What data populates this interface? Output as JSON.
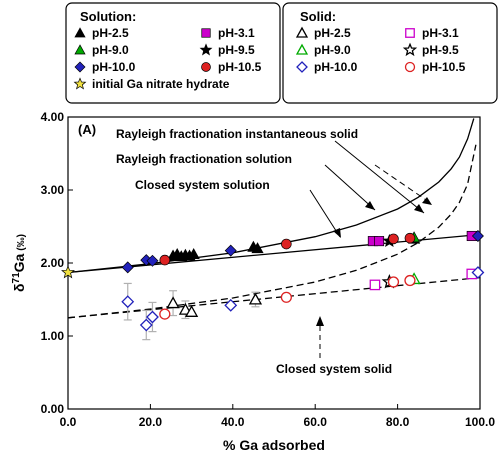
{
  "chart_data": {
    "type": "scatter",
    "panel_label": "(A)",
    "xlabel": "% Ga adsorbed",
    "ylabel_main": "δ",
    "ylabel_sup": "71",
    "ylabel_rest": "Ga",
    "ylabel_unit": "(‰)",
    "xlim": [
      0,
      100
    ],
    "ylim": [
      0,
      4
    ],
    "xticks": [
      "0.0",
      "20.0",
      "40.0",
      "60.0",
      "80.0",
      "100.0"
    ],
    "yticks": [
      "0.00",
      "1.00",
      "2.00",
      "3.00",
      "4.00"
    ],
    "legend_solution": {
      "title": "Solution:",
      "entries": [
        "pH-2.5",
        "pH-3.1",
        "pH-9.0",
        "pH-9.5",
        "pH-10.0",
        "pH-10.5",
        "initial Ga nitrate hydrate"
      ]
    },
    "legend_solid": {
      "title": "Solid:",
      "entries": [
        "pH-2.5",
        "pH-3.1",
        "pH-9.0",
        "pH-9.5",
        "pH-10.0",
        "pH-10.5"
      ]
    },
    "annotations": [
      "Rayleigh fractionation instantaneous solid",
      "Rayleigh fractionation solution",
      "Closed system solution",
      "Closed system solid"
    ],
    "series": [
      {
        "name": "pH-2.5",
        "phase": "Solution",
        "marker": "triangle",
        "filled": true,
        "color": "#000000",
        "points": [
          [
            25.5,
            2.1
          ],
          [
            26.5,
            2.12
          ],
          [
            27.5,
            2.09
          ],
          [
            28.5,
            2.11
          ],
          [
            29.5,
            2.1
          ],
          [
            30.5,
            2.12
          ],
          [
            45.0,
            2.22
          ],
          [
            46.0,
            2.2
          ],
          [
            84.0,
            2.33
          ]
        ]
      },
      {
        "name": "pH-3.1",
        "phase": "Solution",
        "marker": "square",
        "filled": true,
        "color": "#cc00cc",
        "points": [
          [
            74.0,
            2.3
          ],
          [
            75.5,
            2.3
          ],
          [
            98.0,
            2.37
          ]
        ]
      },
      {
        "name": "pH-9.0",
        "phase": "Solution",
        "marker": "triangle",
        "filled": true,
        "color": "#00aa00",
        "points": [
          [
            84.0,
            2.35
          ]
        ]
      },
      {
        "name": "pH-9.5",
        "phase": "Solution",
        "marker": "star",
        "filled": true,
        "color": "#000000",
        "points": [
          [
            78.0,
            2.3
          ]
        ]
      },
      {
        "name": "pH-10.0",
        "phase": "Solution",
        "marker": "diamond",
        "filled": true,
        "color": "#2222bb",
        "points": [
          [
            14.5,
            1.94
          ],
          [
            19.0,
            2.04
          ],
          [
            20.5,
            2.03
          ],
          [
            39.5,
            2.17
          ],
          [
            99.5,
            2.37
          ]
        ]
      },
      {
        "name": "pH-10.5",
        "phase": "Solution",
        "marker": "circle",
        "filled": true,
        "color": "#dd2222",
        "points": [
          [
            23.5,
            2.04
          ],
          [
            53.0,
            2.26
          ],
          [
            79.0,
            2.33
          ],
          [
            83.0,
            2.34
          ]
        ]
      },
      {
        "name": "initial Ga nitrate hydrate",
        "phase": "Solution",
        "marker": "star",
        "filled": true,
        "color": "#f0e040",
        "points": [
          [
            0.0,
            1.87
          ]
        ]
      },
      {
        "name": "pH-2.5",
        "phase": "Solid",
        "marker": "triangle",
        "filled": false,
        "color": "#000000",
        "points": [
          [
            25.5,
            1.45
          ],
          [
            28.5,
            1.36
          ],
          [
            30.0,
            1.33
          ],
          [
            45.5,
            1.5
          ]
        ]
      },
      {
        "name": "pH-3.1",
        "phase": "Solid",
        "marker": "square",
        "filled": false,
        "color": "#cc00cc",
        "points": [
          [
            74.5,
            1.7
          ],
          [
            98.0,
            1.85
          ]
        ]
      },
      {
        "name": "pH-9.0",
        "phase": "Solid",
        "marker": "triangle",
        "filled": false,
        "color": "#00aa00",
        "points": [
          [
            84.0,
            1.78
          ]
        ]
      },
      {
        "name": "pH-9.5",
        "phase": "Solid",
        "marker": "star",
        "filled": false,
        "color": "#000000",
        "points": [
          [
            78.0,
            1.74
          ]
        ]
      },
      {
        "name": "pH-10.0",
        "phase": "Solid",
        "marker": "diamond",
        "filled": false,
        "color": "#2222bb",
        "points": [
          [
            14.5,
            1.47
          ],
          [
            19.0,
            1.15
          ],
          [
            20.5,
            1.26
          ],
          [
            39.5,
            1.42
          ],
          [
            99.5,
            1.87
          ]
        ]
      },
      {
        "name": "pH-10.5",
        "phase": "Solid",
        "marker": "circle",
        "filled": false,
        "color": "#dd2222",
        "points": [
          [
            23.5,
            1.3
          ],
          [
            53.0,
            1.53
          ],
          [
            79.0,
            1.74
          ],
          [
            83.0,
            1.76
          ]
        ]
      }
    ],
    "error_bars": [
      [
        14.5,
        1.47,
        0.25
      ],
      [
        19.0,
        1.15,
        0.2
      ],
      [
        20.5,
        1.26,
        0.2
      ],
      [
        25.5,
        1.45,
        0.17
      ],
      [
        28.5,
        1.36,
        0.12
      ],
      [
        45.5,
        1.5,
        0.1
      ]
    ],
    "model_curves": {
      "rayleigh_instantaneous_solid": {
        "style": "solid",
        "x": [
          0,
          20,
          40,
          60,
          70,
          80,
          85,
          90,
          93,
          95,
          97,
          98.5
        ],
        "y": [
          1.87,
          1.99,
          2.14,
          2.36,
          2.52,
          2.74,
          2.9,
          3.11,
          3.29,
          3.45,
          3.7,
          3.98
        ]
      },
      "rayleigh_solution": {
        "style": "dashed",
        "x": [
          0,
          20,
          40,
          60,
          70,
          80,
          85,
          90,
          93,
          95,
          97,
          99
        ],
        "y": [
          1.25,
          1.37,
          1.52,
          1.74,
          1.9,
          2.12,
          2.28,
          2.49,
          2.67,
          2.83,
          3.08,
          3.62
        ]
      },
      "closed_system_solution": {
        "style": "solid",
        "x": [
          0,
          100
        ],
        "y": [
          1.87,
          2.39
        ]
      },
      "closed_system_solid": {
        "style": "dashed",
        "x": [
          0,
          100
        ],
        "y": [
          1.25,
          1.8
        ]
      }
    }
  }
}
